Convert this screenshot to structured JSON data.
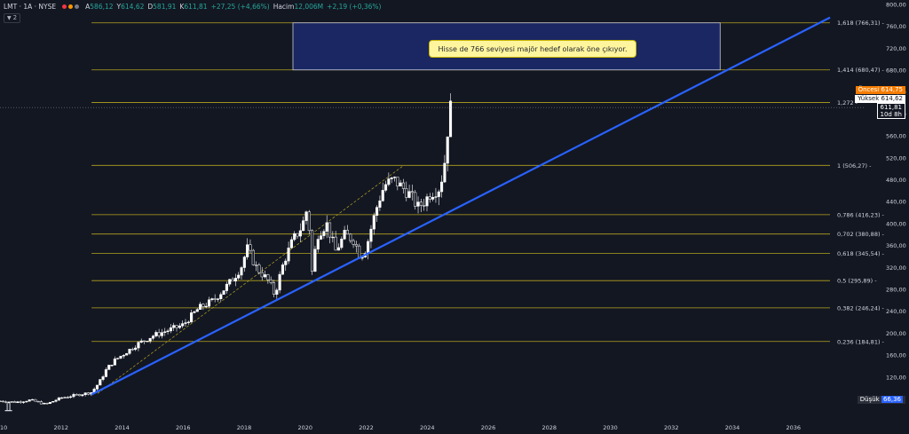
{
  "header": {
    "symbol": "LMT · 1A · NYSE",
    "open_label": "A",
    "open": "586,12",
    "high_label": "Y",
    "high": "614,62",
    "low_label": "D",
    "low": "581,91",
    "close_label": "K",
    "close": "611,81",
    "change": "+27,25 (+4,66%)",
    "volume_label": "Hacim",
    "volume": "12,006M",
    "volume_change": "+2,19 (+0,36%)",
    "indicator_count": "2",
    "dot_colors": [
      "#f23645",
      "#ff9800",
      "#787b86"
    ]
  },
  "callout": {
    "text": "Hisse de 766 seviyesi majör hedef olarak öne çıkıyor."
  },
  "badges": {
    "premarket_label": "Öncesi",
    "premarket_value": "614,75",
    "high_label": "Yüksek",
    "high_value": "614,62",
    "last_value": "611,81",
    "countdown": "10d 8h",
    "low_label": "Düşük",
    "low_value": "66,36"
  },
  "colors": {
    "background": "#131722",
    "candle": "#ffffff",
    "trendline": "#2962ff",
    "fib": "#b5a41f",
    "text": "#d1d4dc",
    "box_fill": "#1a2763",
    "box_border": "#c7cbd6",
    "premarket": "#f57c00"
  },
  "chart_data": {
    "type": "candlestick",
    "symbol": "LMT",
    "timeframe": "1A",
    "x_tick_labels": [
      "2010",
      "2012",
      "2014",
      "2016",
      "2018",
      "2020",
      "2022",
      "2024",
      "2026",
      "2028",
      "2030",
      "2032",
      "2034",
      "2036"
    ],
    "y_tick_labels": [
      "80,00",
      "120,00",
      "160,00",
      "200,00",
      "240,00",
      "280,00",
      "320,00",
      "360,00",
      "400,00",
      "440,00",
      "480,00",
      "520,00",
      "560,00",
      "600,00",
      "640,00",
      "680,00",
      "720,00",
      "760,00",
      "800,00"
    ],
    "xlim": [
      2010,
      2037.2
    ],
    "ylim": [
      50,
      808
    ],
    "price_points": [
      [
        2010.0,
        76
      ],
      [
        2010.5,
        74
      ],
      [
        2011.0,
        78
      ],
      [
        2011.5,
        70
      ],
      [
        2012.0,
        82
      ],
      [
        2012.5,
        87
      ],
      [
        2013.0,
        92
      ],
      [
        2013.25,
        110
      ],
      [
        2013.5,
        135
      ],
      [
        2013.75,
        150
      ],
      [
        2014.0,
        160
      ],
      [
        2014.5,
        180
      ],
      [
        2015.0,
        195
      ],
      [
        2015.5,
        205
      ],
      [
        2016.0,
        215
      ],
      [
        2016.5,
        245
      ],
      [
        2017.0,
        260
      ],
      [
        2017.5,
        290
      ],
      [
        2017.9,
        320
      ],
      [
        2018.1,
        355
      ],
      [
        2018.4,
        320
      ],
      [
        2018.8,
        295
      ],
      [
        2019.0,
        270
      ],
      [
        2019.3,
        330
      ],
      [
        2019.6,
        370
      ],
      [
        2019.9,
        395
      ],
      [
        2020.1,
        435
      ],
      [
        2020.2,
        300
      ],
      [
        2020.4,
        380
      ],
      [
        2020.7,
        400
      ],
      [
        2021.0,
        350
      ],
      [
        2021.3,
        380
      ],
      [
        2021.6,
        370
      ],
      [
        2021.8,
        340
      ],
      [
        2022.0,
        355
      ],
      [
        2022.2,
        400
      ],
      [
        2022.4,
        440
      ],
      [
        2022.6,
        470
      ],
      [
        2022.9,
        480
      ],
      [
        2023.1,
        470
      ],
      [
        2023.4,
        455
      ],
      [
        2023.7,
        430
      ],
      [
        2023.9,
        440
      ],
      [
        2024.1,
        455
      ],
      [
        2024.4,
        465
      ],
      [
        2024.55,
        500
      ],
      [
        2024.65,
        560
      ],
      [
        2024.75,
        611.81
      ]
    ],
    "last": {
      "open": 586.12,
      "high": 614.62,
      "low": 581.91,
      "close": 611.81
    },
    "fib_levels": [
      {
        "ratio": "0,236",
        "value": 184.81,
        "label": "0,236 (184,81)"
      },
      {
        "ratio": "0,382",
        "value": 246.24,
        "label": "0,382 (246,24)"
      },
      {
        "ratio": "0,5",
        "value": 295.89,
        "label": "0,5 (295,89)"
      },
      {
        "ratio": "0,618",
        "value": 345.54,
        "label": "0,618 (345,54)"
      },
      {
        "ratio": "0,702",
        "value": 380.88,
        "label": "0,702 (380,88)"
      },
      {
        "ratio": "0,786",
        "value": 416.23,
        "label": "0,786 (416,23)"
      },
      {
        "ratio": "1",
        "value": 506.27,
        "label": "1 (506,27)"
      },
      {
        "ratio": "1,272",
        "value": 620.79,
        "label": "1,272"
      },
      {
        "ratio": "1,414",
        "value": 680.47,
        "label": "1,414 (680,47)"
      },
      {
        "ratio": "1,618",
        "value": 766.31,
        "label": "1,618 (766,31)"
      }
    ],
    "fib_x_start": 2013.0,
    "trendline": {
      "x1": 2013.0,
      "y1": 88,
      "x2": 2037.2,
      "y2": 776
    },
    "dashed_line": {
      "x1": 2013.2,
      "y1": 90,
      "x2": 2023.2,
      "y2": 505
    },
    "target_box": {
      "x1": 2019.6,
      "x2": 2033.6,
      "y1": 680.47,
      "y2": 766.31
    },
    "grid": false
  }
}
